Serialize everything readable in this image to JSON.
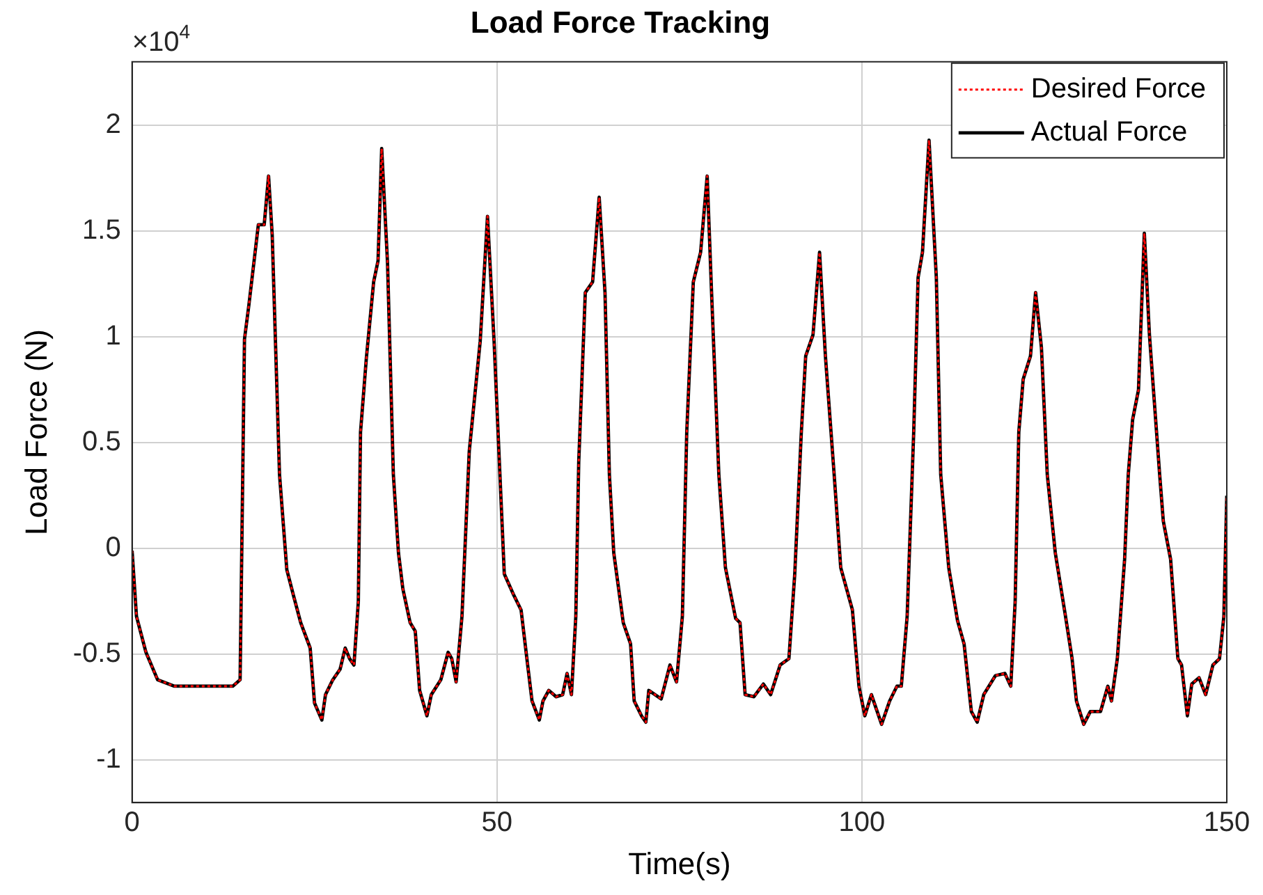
{
  "chart_data": {
    "type": "line",
    "title": "Load Force Tracking",
    "xlabel": "Time(s)",
    "ylabel": "Load Force (N)",
    "annotations": [
      "×10$^{4}$"
    ],
    "x": [
      0,
      0.6,
      1.9,
      3.5,
      5.8,
      13.8,
      14.8,
      15.4,
      16.0,
      17.3,
      18.1,
      18.7,
      19.2,
      20.2,
      21.2,
      22.1,
      23.1,
      24.4,
      25.0,
      26.0,
      26.5,
      27.5,
      28.5,
      29.2,
      29.8,
      30.4,
      31.0,
      31.3,
      32.1,
      33.1,
      33.7,
      34.2,
      35.0,
      35.8,
      36.5,
      37.1,
      38.1,
      38.8,
      39.4,
      40.4,
      41.0,
      42.3,
      43.3,
      43.8,
      44.4,
      45.2,
      46.2,
      47.7,
      48.7,
      49.6,
      50.4,
      51.0,
      52.3,
      53.3,
      54.2,
      54.8,
      55.8,
      56.3,
      57.1,
      58.1,
      59.0,
      59.6,
      60.2,
      60.8,
      61.2,
      62.1,
      63.1,
      64.0,
      64.8,
      65.4,
      66.0,
      67.3,
      68.3,
      68.8,
      69.8,
      70.4,
      70.8,
      72.5,
      73.7,
      74.6,
      75.4,
      76.0,
      76.9,
      77.9,
      78.8,
      79.4,
      80.4,
      81.3,
      82.7,
      83.3,
      84.0,
      85.2,
      86.5,
      87.5,
      88.8,
      90.0,
      90.8,
      91.7,
      92.3,
      93.3,
      94.2,
      95.0,
      96.2,
      97.1,
      98.7,
      99.6,
      100.4,
      101.3,
      101.9,
      102.7,
      103.8,
      104.8,
      105.4,
      106.2,
      107.1,
      107.7,
      108.3,
      109.2,
      110.2,
      110.8,
      111.9,
      113.1,
      114.0,
      115.0,
      115.8,
      116.7,
      118.3,
      119.6,
      120.4,
      121.0,
      121.5,
      122.1,
      123.1,
      123.8,
      124.6,
      125.4,
      126.5,
      127.9,
      128.8,
      129.4,
      130.4,
      131.3,
      132.7,
      133.7,
      134.2,
      135.0,
      136.0,
      136.5,
      137.1,
      137.9,
      138.7,
      139.4,
      140.8,
      141.3,
      142.3,
      143.3,
      143.8,
      144.6,
      145.2,
      146.2,
      147.1,
      148.1,
      149.0,
      149.6,
      150
    ],
    "series": [
      {
        "name": "Desired Force",
        "color": "#ff0000",
        "line_style": "dotted",
        "values": [
          -0.01,
          -0.32,
          -0.49,
          -0.62,
          -0.65,
          -0.65,
          -0.62,
          0.99,
          1.15,
          1.53,
          1.53,
          1.76,
          1.48,
          0.35,
          -0.1,
          -0.22,
          -0.35,
          -0.47,
          -0.73,
          -0.81,
          -0.69,
          -0.62,
          -0.57,
          -0.47,
          -0.52,
          -0.55,
          -0.25,
          0.55,
          0.9,
          1.26,
          1.36,
          1.89,
          1.35,
          0.35,
          -0.02,
          -0.19,
          -0.35,
          -0.39,
          -0.67,
          -0.79,
          -0.69,
          -0.62,
          -0.49,
          -0.52,
          -0.63,
          -0.32,
          0.46,
          0.98,
          1.57,
          0.98,
          0.35,
          -0.12,
          -0.22,
          -0.29,
          -0.55,
          -0.72,
          -0.81,
          -0.72,
          -0.67,
          -0.7,
          -0.69,
          -0.59,
          -0.69,
          -0.32,
          0.41,
          1.21,
          1.26,
          1.66,
          1.21,
          0.35,
          -0.02,
          -0.35,
          -0.45,
          -0.72,
          -0.79,
          -0.82,
          -0.67,
          -0.71,
          -0.55,
          -0.63,
          -0.32,
          0.55,
          1.26,
          1.4,
          1.76,
          1.21,
          0.35,
          -0.09,
          -0.33,
          -0.35,
          -0.69,
          -0.7,
          -0.64,
          -0.69,
          -0.55,
          -0.52,
          -0.12,
          0.55,
          0.91,
          1.01,
          1.4,
          0.91,
          0.35,
          -0.09,
          -0.29,
          -0.65,
          -0.79,
          -0.69,
          -0.75,
          -0.83,
          -0.72,
          -0.65,
          -0.65,
          -0.32,
          0.55,
          1.28,
          1.4,
          1.93,
          1.28,
          0.35,
          -0.09,
          -0.34,
          -0.45,
          -0.77,
          -0.82,
          -0.69,
          -0.6,
          -0.59,
          -0.65,
          -0.25,
          0.55,
          0.8,
          0.91,
          1.21,
          0.95,
          0.35,
          -0.02,
          -0.32,
          -0.52,
          -0.72,
          -0.83,
          -0.77,
          -0.77,
          -0.65,
          -0.72,
          -0.52,
          -0.05,
          0.35,
          0.61,
          0.75,
          1.49,
          1.01,
          0.35,
          0.13,
          -0.05,
          -0.52,
          -0.55,
          -0.79,
          -0.64,
          -0.61,
          -0.69,
          -0.55,
          -0.52,
          -0.32,
          0.25
        ]
      },
      {
        "name": "Actual Force",
        "color": "#000000",
        "line_style": "solid",
        "values": [
          -0.01,
          -0.32,
          -0.49,
          -0.62,
          -0.65,
          -0.65,
          -0.62,
          0.99,
          1.15,
          1.53,
          1.53,
          1.76,
          1.48,
          0.35,
          -0.1,
          -0.22,
          -0.35,
          -0.47,
          -0.73,
          -0.81,
          -0.69,
          -0.62,
          -0.57,
          -0.47,
          -0.52,
          -0.55,
          -0.25,
          0.55,
          0.9,
          1.26,
          1.36,
          1.89,
          1.35,
          0.35,
          -0.02,
          -0.19,
          -0.35,
          -0.39,
          -0.67,
          -0.79,
          -0.69,
          -0.62,
          -0.49,
          -0.52,
          -0.63,
          -0.32,
          0.46,
          0.98,
          1.57,
          0.98,
          0.35,
          -0.12,
          -0.22,
          -0.29,
          -0.55,
          -0.72,
          -0.81,
          -0.72,
          -0.67,
          -0.7,
          -0.69,
          -0.59,
          -0.69,
          -0.32,
          0.41,
          1.21,
          1.26,
          1.66,
          1.21,
          0.35,
          -0.02,
          -0.35,
          -0.45,
          -0.72,
          -0.79,
          -0.82,
          -0.67,
          -0.71,
          -0.55,
          -0.63,
          -0.32,
          0.55,
          1.26,
          1.4,
          1.76,
          1.21,
          0.35,
          -0.09,
          -0.33,
          -0.35,
          -0.69,
          -0.7,
          -0.64,
          -0.69,
          -0.55,
          -0.52,
          -0.12,
          0.55,
          0.91,
          1.01,
          1.4,
          0.91,
          0.35,
          -0.09,
          -0.29,
          -0.65,
          -0.79,
          -0.69,
          -0.75,
          -0.83,
          -0.72,
          -0.65,
          -0.65,
          -0.32,
          0.55,
          1.28,
          1.4,
          1.93,
          1.28,
          0.35,
          -0.09,
          -0.34,
          -0.45,
          -0.77,
          -0.82,
          -0.69,
          -0.6,
          -0.59,
          -0.65,
          -0.25,
          0.55,
          0.8,
          0.91,
          1.21,
          0.95,
          0.35,
          -0.02,
          -0.32,
          -0.52,
          -0.72,
          -0.83,
          -0.77,
          -0.77,
          -0.65,
          -0.72,
          -0.52,
          -0.05,
          0.35,
          0.61,
          0.75,
          1.49,
          1.01,
          0.35,
          0.13,
          -0.05,
          -0.52,
          -0.55,
          -0.79,
          -0.64,
          -0.61,
          -0.69,
          -0.55,
          -0.52,
          -0.32,
          0.25
        ]
      }
    ],
    "xlim": [
      0,
      150
    ],
    "xticks": [
      0,
      50,
      100,
      150
    ],
    "ylim": [
      -1.2,
      2.3
    ],
    "yticks": [
      -1,
      -0.5,
      0,
      0.5,
      1,
      1.5,
      2
    ],
    "grid": true,
    "legend": "top right"
  }
}
